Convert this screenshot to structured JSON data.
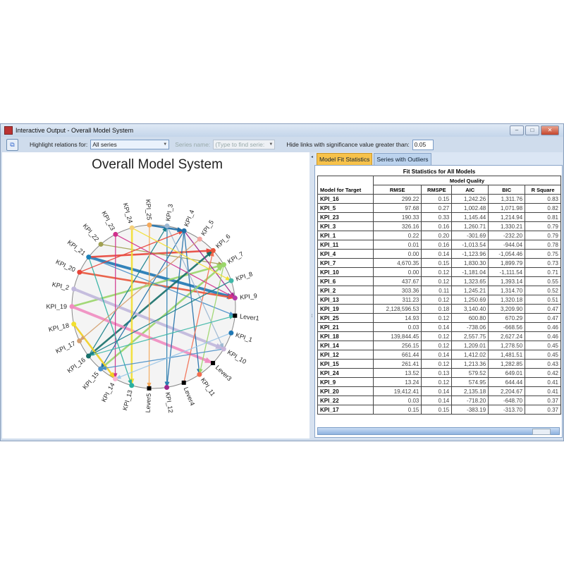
{
  "window": {
    "title": "Interactive Output - Overall Model System",
    "controls": [
      "minimize",
      "maximize",
      "close"
    ]
  },
  "toolbar": {
    "highlight_label": "Highlight relations for:",
    "highlight_value": "All series",
    "series_name_label": "Series name:",
    "series_name_placeholder": "(Type to find serie:",
    "hide_links_label": "Hide links with significance value greater than:",
    "hide_links_value": "0.05"
  },
  "diagram": {
    "title": "Overall Model System",
    "nodes": [
      {
        "id": "KPI_25",
        "color": "#f5a95a"
      },
      {
        "id": "KPI_3",
        "color": "#9db8d2"
      },
      {
        "id": "KPI_4",
        "color": "#1f6fa8"
      },
      {
        "id": "KPI_5",
        "color": "#f3a5a0"
      },
      {
        "id": "KPI_6",
        "color": "#e8553a"
      },
      {
        "id": "KPI_7",
        "color": "#9ad66a"
      },
      {
        "id": "KPI_8",
        "color": "#3fb8a8"
      },
      {
        "id": "KPI_9",
        "color": "#b43aa8"
      },
      {
        "id": "Lever1",
        "color": "#000000"
      },
      {
        "id": "KPI_1",
        "color": "#1f77b4"
      },
      {
        "id": "KPI_10",
        "color": "#c7b4d8"
      },
      {
        "id": "Lever3",
        "color": "#000000"
      },
      {
        "id": "KPI_11",
        "color": "#f26c4f"
      },
      {
        "id": "Lever4",
        "color": "#000000"
      },
      {
        "id": "KPI_12",
        "color": "#a0288c"
      },
      {
        "id": "Lever5",
        "color": "#000000"
      },
      {
        "id": "KPI_13",
        "color": "#2bb0a0"
      },
      {
        "id": "KPI_14",
        "color": "#f7b6d2"
      },
      {
        "id": "KPI_15",
        "color": "#4a90c8"
      },
      {
        "id": "KPI_16",
        "color": "#17706a"
      },
      {
        "id": "KPI_17",
        "color": "#d4a070"
      },
      {
        "id": "KPI_18",
        "color": "#f2e030"
      },
      {
        "id": "KPI_19",
        "color": "#f08cc0"
      },
      {
        "id": "KPI_2",
        "color": "#c0b8dc"
      },
      {
        "id": "KPI_20",
        "color": "#e8453a"
      },
      {
        "id": "KPI_21",
        "color": "#1a80b8"
      },
      {
        "id": "KPI_22",
        "color": "#a0a050"
      },
      {
        "id": "KPI_23",
        "color": "#d0308c"
      },
      {
        "id": "KPI_24",
        "color": "#f5d07a"
      }
    ],
    "edges": [
      {
        "from": "KPI_21",
        "to": "KPI_9",
        "color": "#1f77b4",
        "strength": 3
      },
      {
        "from": "KPI_20",
        "to": "KPI_9",
        "color": "#e8553a",
        "strength": 2
      },
      {
        "from": "KPI_21",
        "to": "KPI_6",
        "color": "#e8453a",
        "strength": 2
      },
      {
        "from": "KPI_22",
        "to": "KPI_7",
        "color": "#a0a050",
        "strength": 1
      },
      {
        "from": "KPI_19",
        "to": "KPI_7",
        "color": "#9ad66a",
        "strength": 2
      },
      {
        "from": "KPI_15",
        "to": "KPI_7",
        "color": "#9ad66a",
        "strength": 2
      },
      {
        "from": "KPI_16",
        "to": "KPI_6",
        "color": "#17706a",
        "strength": 2
      },
      {
        "from": "KPI_16",
        "to": "KPI_3",
        "color": "#17808a",
        "strength": 1
      },
      {
        "from": "KPI_19",
        "to": "Lever3",
        "color": "#f08cc0",
        "strength": 3
      },
      {
        "from": "KPI_2",
        "to": "KPI_10",
        "color": "#c0b8dc",
        "strength": 3
      },
      {
        "from": "KPI_24",
        "to": "KPI_13",
        "color": "#f2e030",
        "strength": 2
      },
      {
        "from": "KPI_25",
        "to": "Lever5",
        "color": "#f5a95a",
        "strength": 1
      },
      {
        "from": "KPI_23",
        "to": "KPI_14",
        "color": "#d0308c",
        "strength": 1
      },
      {
        "from": "KPI_4",
        "to": "KPI_15",
        "color": "#1f6fa8",
        "strength": 1
      },
      {
        "from": "KPI_4",
        "to": "KPI_11",
        "color": "#1f6fa8",
        "strength": 1
      },
      {
        "from": "KPI_4",
        "to": "KPI_12",
        "color": "#1f6fa8",
        "strength": 1
      },
      {
        "from": "KPI_3",
        "to": "KPI_12",
        "color": "#2a80b0",
        "strength": 1
      },
      {
        "from": "KPI_4",
        "to": "KPI_9",
        "color": "#a0288c",
        "strength": 1
      },
      {
        "from": "KPI_23",
        "to": "KPI_9",
        "color": "#d0308c",
        "strength": 1
      },
      {
        "from": "KPI_21",
        "to": "KPI_13",
        "color": "#2bb0a0",
        "strength": 1
      },
      {
        "from": "KPI_21",
        "to": "Lever1",
        "color": "#4a90c8",
        "strength": 1
      },
      {
        "from": "KPI_18",
        "to": "KPI_14",
        "color": "#f2d020",
        "strength": 2
      },
      {
        "from": "KPI_7",
        "to": "KPI_11",
        "color": "#9ad66a",
        "strength": 1
      },
      {
        "from": "KPI_10",
        "to": "KPI_15",
        "color": "#4a90c8",
        "strength": 1
      },
      {
        "from": "Lever4",
        "to": "KPI_6",
        "color": "#f26c4f",
        "strength": 1
      },
      {
        "from": "KPI_1",
        "to": "KPI_14",
        "color": "#9ec8e8",
        "strength": 1
      },
      {
        "from": "KPI_5",
        "to": "KPI_17",
        "color": "#d4a070",
        "strength": 1
      },
      {
        "from": "KPI_3",
        "to": "KPI_10",
        "color": "#9db8d2",
        "strength": 1
      },
      {
        "from": "KPI_8",
        "to": "KPI_16",
        "color": "#17808a",
        "strength": 1
      },
      {
        "from": "KPI_20",
        "to": "KPI_4",
        "color": "#e8453a",
        "strength": 1
      },
      {
        "from": "KPI_25",
        "to": "KPI_4",
        "color": "#1f6fa8",
        "strength": 2
      },
      {
        "from": "KPI_24",
        "to": "KPI_8",
        "color": "#f2e030",
        "strength": 1
      },
      {
        "from": "KPI_16",
        "to": "Lever1",
        "color": "#3fb8a8",
        "strength": 1
      }
    ]
  },
  "tabs": [
    {
      "label": "Model Fit Statistics",
      "active": true
    },
    {
      "label": "Series with Outliers",
      "active": false
    }
  ],
  "table": {
    "title": "Fit Statistics for All Models",
    "group_header": "Model Quality",
    "row_header": "Model for Target",
    "columns": [
      "RMSE",
      "RMSPE",
      "AIC",
      "BIC",
      "R Square"
    ],
    "rows": [
      [
        "KPI_16",
        "299.22",
        "0.15",
        "1,242.26",
        "1,311.76",
        "0.83"
      ],
      [
        "KPI_5",
        "97.68",
        "0.27",
        "1,002.48",
        "1,071.98",
        "0.82"
      ],
      [
        "KPI_23",
        "190.33",
        "0.33",
        "1,145.44",
        "1,214.94",
        "0.81"
      ],
      [
        "KPI_3",
        "326.16",
        "0.16",
        "1,260.71",
        "1,330.21",
        "0.79"
      ],
      [
        "KPI_1",
        "0.22",
        "0.20",
        "-301.69",
        "-232.20",
        "0.79"
      ],
      [
        "KPI_11",
        "0.01",
        "0.16",
        "-1,013.54",
        "-944.04",
        "0.78"
      ],
      [
        "KPI_4",
        "0.00",
        "0.14",
        "-1,123.96",
        "-1,054.46",
        "0.75"
      ],
      [
        "KPI_7",
        "4,670.35",
        "0.15",
        "1,830.30",
        "1,899.79",
        "0.73"
      ],
      [
        "KPI_10",
        "0.00",
        "0.12",
        "-1,181.04",
        "-1,111.54",
        "0.71"
      ],
      [
        "KPI_6",
        "437.67",
        "0.12",
        "1,323.65",
        "1,393.14",
        "0.55"
      ],
      [
        "KPI_2",
        "303.36",
        "0.11",
        "1,245.21",
        "1,314.70",
        "0.52"
      ],
      [
        "KPI_13",
        "311.23",
        "0.12",
        "1,250.69",
        "1,320.18",
        "0.51"
      ],
      [
        "KPI_19",
        "2,128,596.53",
        "0.18",
        "3,140.40",
        "3,209.90",
        "0.47"
      ],
      [
        "KPI_25",
        "14.93",
        "0.12",
        "600.80",
        "670.29",
        "0.47"
      ],
      [
        "KPI_21",
        "0.03",
        "0.14",
        "-738.06",
        "-668.56",
        "0.46"
      ],
      [
        "KPI_18",
        "139,844.45",
        "0.12",
        "2,557.75",
        "2,627.24",
        "0.46"
      ],
      [
        "KPI_14",
        "256.15",
        "0.12",
        "1,209.01",
        "1,278.50",
        "0.45"
      ],
      [
        "KPI_12",
        "661.44",
        "0.14",
        "1,412.02",
        "1,481.51",
        "0.45"
      ],
      [
        "KPI_15",
        "261.41",
        "0.12",
        "1,213.36",
        "1,282.85",
        "0.43"
      ],
      [
        "KPI_24",
        "13.52",
        "0.13",
        "579.52",
        "649.01",
        "0.42"
      ],
      [
        "KPI_9",
        "13.24",
        "0.12",
        "574.95",
        "644.44",
        "0.41"
      ],
      [
        "KPI_20",
        "19,412.41",
        "0.14",
        "2,135.18",
        "2,204.67",
        "0.41"
      ],
      [
        "KPI_22",
        "0.03",
        "0.14",
        "-718.20",
        "-648.70",
        "0.37"
      ],
      [
        "KPI_17",
        "0.15",
        "0.15",
        "-383.19",
        "-313.70",
        "0.37"
      ]
    ]
  }
}
